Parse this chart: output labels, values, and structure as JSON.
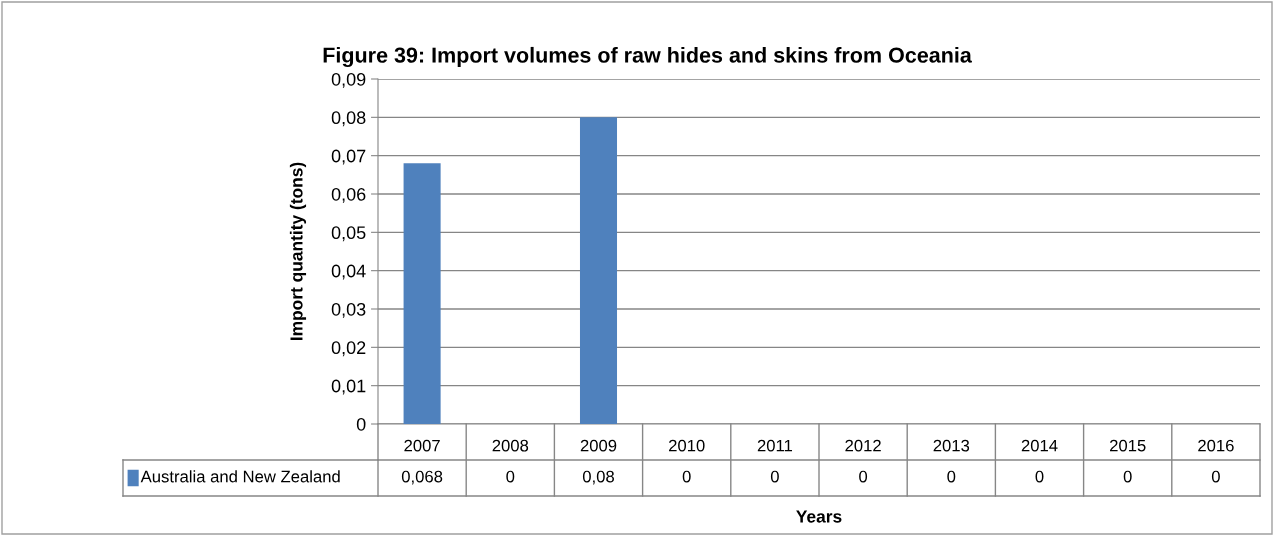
{
  "chart_data": {
    "type": "bar",
    "title": "Figure 39: Import volumes of raw hides and skins from Oceania",
    "xlabel": "Years",
    "ylabel": "Import quantity (tons)",
    "categories": [
      "2007",
      "2008",
      "2009",
      "2010",
      "2011",
      "2012",
      "2013",
      "2014",
      "2015",
      "2016"
    ],
    "series": [
      {
        "name": "Australia and New Zealand",
        "color": "#4f81bd",
        "values": [
          0.068,
          0,
          0.08,
          0,
          0,
          0,
          0,
          0,
          0,
          0
        ],
        "value_labels": [
          "0,068",
          "0",
          "0,08",
          "0",
          "0",
          "0",
          "0",
          "0",
          "0",
          "0"
        ]
      }
    ],
    "ylim": [
      0,
      0.09
    ],
    "yticks": [
      0,
      {
        "value": 0.01,
        "label": "0,01"
      },
      {
        "value": 0.02,
        "label": "0,02"
      },
      {
        "value": 0.03,
        "label": "0,03"
      },
      {
        "value": 0.04,
        "label": "0,04"
      },
      {
        "value": 0.05,
        "label": "0,05"
      },
      {
        "value": 0.06,
        "label": "0,06"
      },
      {
        "value": 0.07,
        "label": "0,07"
      },
      {
        "value": 0.08,
        "label": "0,08"
      },
      {
        "value": 0.09,
        "label": "0,09"
      }
    ],
    "grid": "y"
  }
}
